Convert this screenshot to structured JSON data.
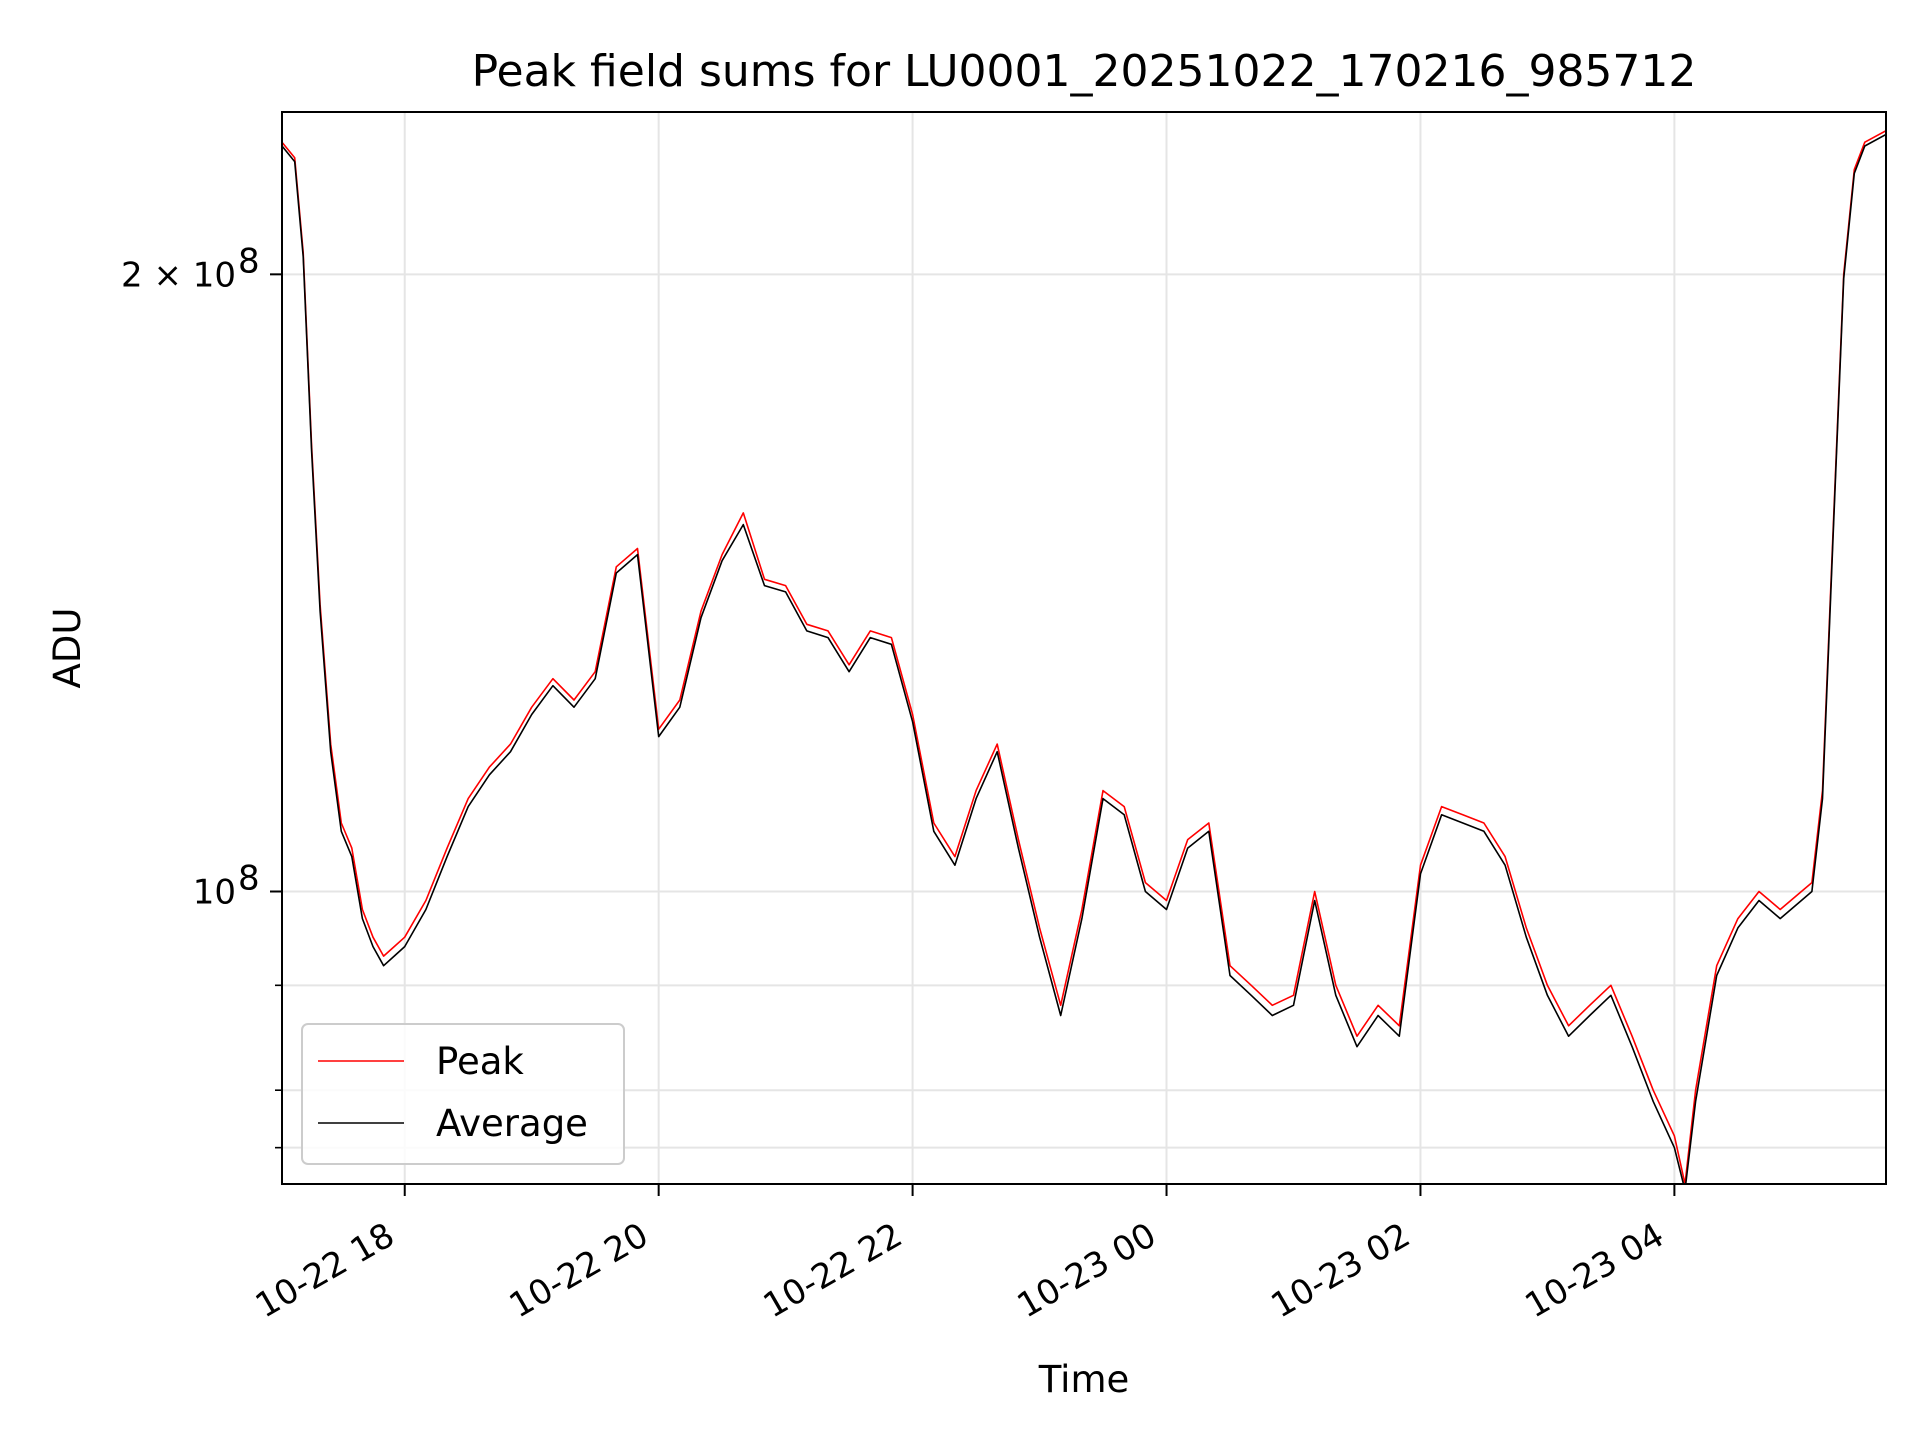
{
  "chart_data": {
    "type": "line",
    "title": "Peak field sums for LU0001_20251022_170216_985712",
    "xlabel": "Time",
    "ylabel": "ADU",
    "y_scale": "log",
    "ylim": [
      72000000,
      240000000
    ],
    "xlim": [
      "2025-10-22 17:02",
      "2025-10-23 05:40"
    ],
    "grid": true,
    "legend_position": "lower-left",
    "x_ticks": [
      {
        "time": "2025-10-22 18:00",
        "label": "10-22 18"
      },
      {
        "time": "2025-10-22 20:00",
        "label": "10-22 20"
      },
      {
        "time": "2025-10-22 22:00",
        "label": "10-22 22"
      },
      {
        "time": "2025-10-23 00:00",
        "label": "10-23 00"
      },
      {
        "time": "2025-10-23 02:00",
        "label": "10-23 02"
      },
      {
        "time": "2025-10-23 04:00",
        "label": "10-23 04"
      }
    ],
    "y_major_ticks": [
      {
        "value": 100000000,
        "label": "10",
        "exp": "8"
      },
      {
        "value": 200000000,
        "label": "2 × 10",
        "exp": "8"
      }
    ],
    "y_minor_ticks": [
      75000000,
      80000000,
      90000000
    ],
    "colors": {
      "peak": "#ff0000",
      "average": "#000000",
      "grid": "#e5e5e5"
    },
    "series": [
      {
        "name": "Peak",
        "color": "#ff0000",
        "points": [
          [
            "2025-10-22 17:02",
            232000000
          ],
          [
            "2025-10-22 17:08",
            228000000
          ],
          [
            "2025-10-22 17:12",
            205000000
          ],
          [
            "2025-10-22 17:16",
            165000000
          ],
          [
            "2025-10-22 17:20",
            138000000
          ],
          [
            "2025-10-22 17:25",
            118000000
          ],
          [
            "2025-10-22 17:30",
            108000000
          ],
          [
            "2025-10-22 17:35",
            105000000
          ],
          [
            "2025-10-22 17:40",
            98000000
          ],
          [
            "2025-10-22 17:45",
            95000000
          ],
          [
            "2025-10-22 17:50",
            93000000
          ],
          [
            "2025-10-22 17:55",
            94000000
          ],
          [
            "2025-10-22 18:00",
            95000000
          ],
          [
            "2025-10-22 18:10",
            99000000
          ],
          [
            "2025-10-22 18:20",
            105000000
          ],
          [
            "2025-10-22 18:30",
            111000000
          ],
          [
            "2025-10-22 18:40",
            115000000
          ],
          [
            "2025-10-22 18:50",
            118000000
          ],
          [
            "2025-10-22 19:00",
            123000000
          ],
          [
            "2025-10-22 19:10",
            127000000
          ],
          [
            "2025-10-22 19:20",
            124000000
          ],
          [
            "2025-10-22 19:30",
            128000000
          ],
          [
            "2025-10-22 19:40",
            144000000
          ],
          [
            "2025-10-22 19:50",
            147000000
          ],
          [
            "2025-10-22 20:00",
            120000000
          ],
          [
            "2025-10-22 20:10",
            124000000
          ],
          [
            "2025-10-22 20:20",
            137000000
          ],
          [
            "2025-10-22 20:30",
            146000000
          ],
          [
            "2025-10-22 20:40",
            153000000
          ],
          [
            "2025-10-22 20:50",
            142000000
          ],
          [
            "2025-10-22 21:00",
            141000000
          ],
          [
            "2025-10-22 21:10",
            135000000
          ],
          [
            "2025-10-22 21:20",
            134000000
          ],
          [
            "2025-10-22 21:30",
            129000000
          ],
          [
            "2025-10-22 21:40",
            134000000
          ],
          [
            "2025-10-22 21:50",
            133000000
          ],
          [
            "2025-10-22 22:00",
            122000000
          ],
          [
            "2025-10-22 22:10",
            108000000
          ],
          [
            "2025-10-22 22:20",
            104000000
          ],
          [
            "2025-10-22 22:30",
            112000000
          ],
          [
            "2025-10-22 22:40",
            118000000
          ],
          [
            "2025-10-22 22:50",
            106000000
          ],
          [
            "2025-10-22 23:00",
            96000000
          ],
          [
            "2025-10-22 23:10",
            88000000
          ],
          [
            "2025-10-22 23:20",
            98000000
          ],
          [
            "2025-10-22 23:30",
            112000000
          ],
          [
            "2025-10-22 23:40",
            110000000
          ],
          [
            "2025-10-22 23:50",
            101000000
          ],
          [
            "2025-10-23 00:00",
            99000000
          ],
          [
            "2025-10-23 00:10",
            106000000
          ],
          [
            "2025-10-23 00:20",
            108000000
          ],
          [
            "2025-10-23 00:30",
            92000000
          ],
          [
            "2025-10-23 00:40",
            90000000
          ],
          [
            "2025-10-23 00:50",
            88000000
          ],
          [
            "2025-10-23 01:00",
            89000000
          ],
          [
            "2025-10-23 01:10",
            100000000
          ],
          [
            "2025-10-23 01:20",
            90000000
          ],
          [
            "2025-10-23 01:30",
            85000000
          ],
          [
            "2025-10-23 01:40",
            88000000
          ],
          [
            "2025-10-23 01:50",
            86000000
          ],
          [
            "2025-10-23 02:00",
            103000000
          ],
          [
            "2025-10-23 02:10",
            110000000
          ],
          [
            "2025-10-23 02:20",
            109000000
          ],
          [
            "2025-10-23 02:30",
            108000000
          ],
          [
            "2025-10-23 02:40",
            104000000
          ],
          [
            "2025-10-23 02:50",
            96000000
          ],
          [
            "2025-10-23 03:00",
            90000000
          ],
          [
            "2025-10-23 03:10",
            86000000
          ],
          [
            "2025-10-23 03:20",
            88000000
          ],
          [
            "2025-10-23 03:30",
            90000000
          ],
          [
            "2025-10-23 03:40",
            85000000
          ],
          [
            "2025-10-23 03:50",
            80000000
          ],
          [
            "2025-10-23 04:00",
            76000000
          ],
          [
            "2025-10-23 04:05",
            72000000
          ],
          [
            "2025-10-23 04:10",
            80000000
          ],
          [
            "2025-10-23 04:20",
            92000000
          ],
          [
            "2025-10-23 04:30",
            97000000
          ],
          [
            "2025-10-23 04:40",
            100000000
          ],
          [
            "2025-10-23 04:50",
            98000000
          ],
          [
            "2025-10-23 05:00",
            100000000
          ],
          [
            "2025-10-23 05:05",
            101000000
          ],
          [
            "2025-10-23 05:10",
            112000000
          ],
          [
            "2025-10-23 05:15",
            150000000
          ],
          [
            "2025-10-23 05:20",
            200000000
          ],
          [
            "2025-10-23 05:25",
            225000000
          ],
          [
            "2025-10-23 05:30",
            232000000
          ],
          [
            "2025-10-23 05:40",
            235000000
          ]
        ]
      },
      {
        "name": "Average",
        "color": "#000000",
        "points": [
          [
            "2025-10-22 17:02",
            231000000
          ],
          [
            "2025-10-22 17:08",
            227000000
          ],
          [
            "2025-10-22 17:12",
            204000000
          ],
          [
            "2025-10-22 17:16",
            164000000
          ],
          [
            "2025-10-22 17:20",
            137000000
          ],
          [
            "2025-10-22 17:25",
            117000000
          ],
          [
            "2025-10-22 17:30",
            107000000
          ],
          [
            "2025-10-22 17:35",
            104000000
          ],
          [
            "2025-10-22 17:40",
            97000000
          ],
          [
            "2025-10-22 17:45",
            94000000
          ],
          [
            "2025-10-22 17:50",
            92000000
          ],
          [
            "2025-10-22 17:55",
            93000000
          ],
          [
            "2025-10-22 18:00",
            94000000
          ],
          [
            "2025-10-22 18:10",
            98000000
          ],
          [
            "2025-10-22 18:20",
            104000000
          ],
          [
            "2025-10-22 18:30",
            110000000
          ],
          [
            "2025-10-22 18:40",
            114000000
          ],
          [
            "2025-10-22 18:50",
            117000000
          ],
          [
            "2025-10-22 19:00",
            122000000
          ],
          [
            "2025-10-22 19:10",
            126000000
          ],
          [
            "2025-10-22 19:20",
            123000000
          ],
          [
            "2025-10-22 19:30",
            127000000
          ],
          [
            "2025-10-22 19:40",
            143000000
          ],
          [
            "2025-10-22 19:50",
            146000000
          ],
          [
            "2025-10-22 20:00",
            119000000
          ],
          [
            "2025-10-22 20:10",
            123000000
          ],
          [
            "2025-10-22 20:20",
            136000000
          ],
          [
            "2025-10-22 20:30",
            145000000
          ],
          [
            "2025-10-22 20:40",
            151000000
          ],
          [
            "2025-10-22 20:50",
            141000000
          ],
          [
            "2025-10-22 21:00",
            140000000
          ],
          [
            "2025-10-22 21:10",
            134000000
          ],
          [
            "2025-10-22 21:20",
            133000000
          ],
          [
            "2025-10-22 21:30",
            128000000
          ],
          [
            "2025-10-22 21:40",
            133000000
          ],
          [
            "2025-10-22 21:50",
            132000000
          ],
          [
            "2025-10-22 22:00",
            121000000
          ],
          [
            "2025-10-22 22:10",
            107000000
          ],
          [
            "2025-10-22 22:20",
            103000000
          ],
          [
            "2025-10-22 22:30",
            111000000
          ],
          [
            "2025-10-22 22:40",
            117000000
          ],
          [
            "2025-10-22 22:50",
            105000000
          ],
          [
            "2025-10-22 23:00",
            95000000
          ],
          [
            "2025-10-22 23:10",
            87000000
          ],
          [
            "2025-10-22 23:20",
            97000000
          ],
          [
            "2025-10-22 23:30",
            111000000
          ],
          [
            "2025-10-22 23:40",
            109000000
          ],
          [
            "2025-10-22 23:50",
            100000000
          ],
          [
            "2025-10-23 00:00",
            98000000
          ],
          [
            "2025-10-23 00:10",
            105000000
          ],
          [
            "2025-10-23 00:20",
            107000000
          ],
          [
            "2025-10-23 00:30",
            91000000
          ],
          [
            "2025-10-23 00:40",
            89000000
          ],
          [
            "2025-10-23 00:50",
            87000000
          ],
          [
            "2025-10-23 01:00",
            88000000
          ],
          [
            "2025-10-23 01:10",
            99000000
          ],
          [
            "2025-10-23 01:20",
            89000000
          ],
          [
            "2025-10-23 01:30",
            84000000
          ],
          [
            "2025-10-23 01:40",
            87000000
          ],
          [
            "2025-10-23 01:50",
            85000000
          ],
          [
            "2025-10-23 02:00",
            102000000
          ],
          [
            "2025-10-23 02:10",
            109000000
          ],
          [
            "2025-10-23 02:20",
            108000000
          ],
          [
            "2025-10-23 02:30",
            107000000
          ],
          [
            "2025-10-23 02:40",
            103000000
          ],
          [
            "2025-10-23 02:50",
            95000000
          ],
          [
            "2025-10-23 03:00",
            89000000
          ],
          [
            "2025-10-23 03:10",
            85000000
          ],
          [
            "2025-10-23 03:20",
            87000000
          ],
          [
            "2025-10-23 03:30",
            89000000
          ],
          [
            "2025-10-23 03:40",
            84000000
          ],
          [
            "2025-10-23 03:50",
            79000000
          ],
          [
            "2025-10-23 04:00",
            75000000
          ],
          [
            "2025-10-23 04:05",
            71500000
          ],
          [
            "2025-10-23 04:10",
            79000000
          ],
          [
            "2025-10-23 04:20",
            91000000
          ],
          [
            "2025-10-23 04:30",
            96000000
          ],
          [
            "2025-10-23 04:40",
            99000000
          ],
          [
            "2025-10-23 04:50",
            97000000
          ],
          [
            "2025-10-23 05:00",
            99000000
          ],
          [
            "2025-10-23 05:05",
            100000000
          ],
          [
            "2025-10-23 05:10",
            111000000
          ],
          [
            "2025-10-23 05:15",
            149000000
          ],
          [
            "2025-10-23 05:20",
            199000000
          ],
          [
            "2025-10-23 05:25",
            224000000
          ],
          [
            "2025-10-23 05:30",
            231000000
          ],
          [
            "2025-10-23 05:40",
            234000000
          ]
        ]
      }
    ]
  }
}
